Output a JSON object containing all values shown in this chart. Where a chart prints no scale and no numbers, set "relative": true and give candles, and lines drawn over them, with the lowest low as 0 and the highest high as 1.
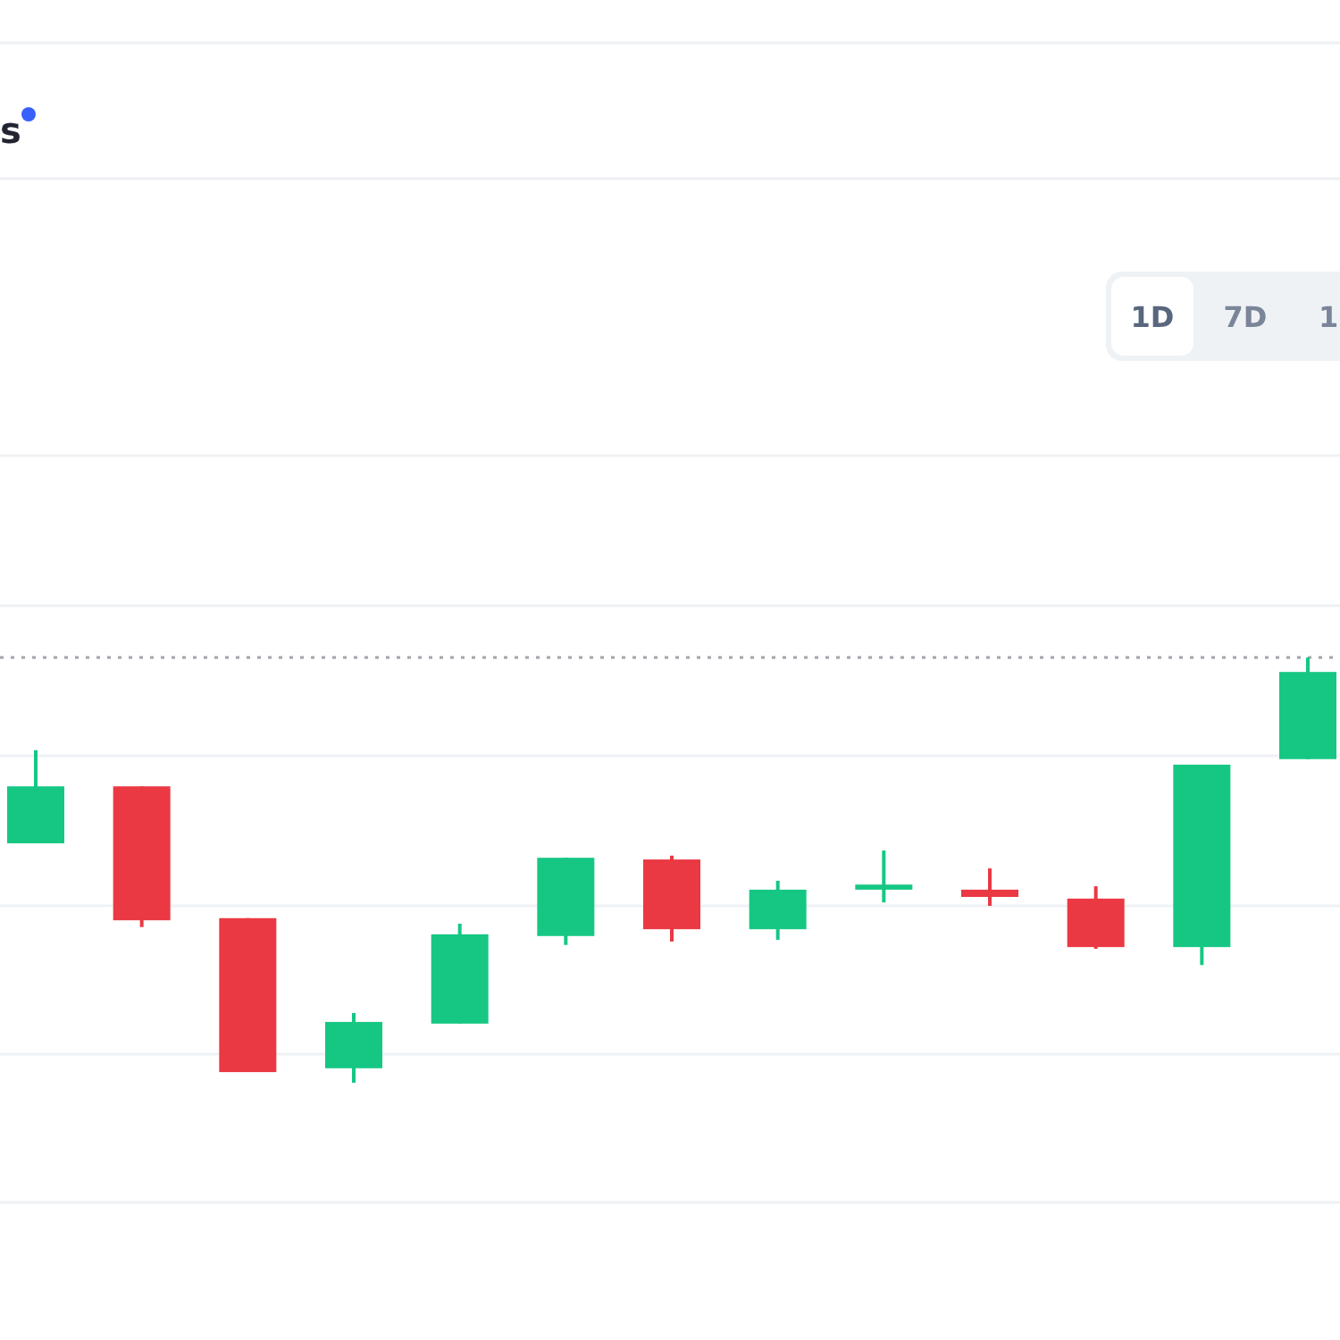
{
  "chart_data": {
    "type": "candlestick",
    "title": "s",
    "relative": true,
    "grid": true,
    "categories": [
      null,
      null,
      null,
      null,
      null,
      null,
      null,
      null,
      null,
      null,
      null,
      null,
      null
    ],
    "ohlc": [
      [
        0.563,
        0.782,
        0.563,
        0.697
      ],
      [
        0.697,
        0.697,
        0.366,
        0.382
      ],
      [
        0.387,
        0.387,
        0.025,
        0.025
      ],
      [
        0.034,
        0.164,
        0,
        0.143
      ],
      [
        0.139,
        0.374,
        0.139,
        0.349
      ],
      [
        0.345,
        0.529,
        0.324,
        0.529
      ],
      [
        0.525,
        0.534,
        0.332,
        0.361
      ],
      [
        0.361,
        0.475,
        0.336,
        0.454
      ],
      [
        0.454,
        0.546,
        0.424,
        0.466
      ],
      [
        0.454,
        0.504,
        0.416,
        0.437
      ],
      [
        0.433,
        0.462,
        0.315,
        0.319
      ],
      [
        0.319,
        0.748,
        0.277,
        0.748
      ],
      [
        0.761,
        1,
        0.761,
        0.966
      ]
    ],
    "colors": [
      "#16c784",
      "#ea3943",
      "#ea3943",
      "#16c784",
      "#16c784",
      "#16c784",
      "#ea3943",
      "#16c784",
      "#16c784",
      "#ea3943",
      "#ea3943",
      "#16c784",
      "#16c784"
    ],
    "ref_lines": [
      {
        "axis": "y",
        "value": 1,
        "color": "#a0a4ab",
        "line_style": "dotted"
      }
    ],
    "annotations": [
      "1D",
      "7D",
      "1"
    ]
  }
}
